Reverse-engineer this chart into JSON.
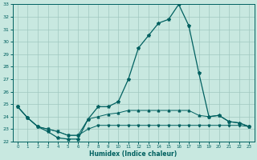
{
  "xlabel": "Humidex (Indice chaleur)",
  "bg_color": "#c8e8e0",
  "line_color": "#006060",
  "grid_color": "#a0c8c0",
  "x_values": [
    0,
    1,
    2,
    3,
    4,
    5,
    6,
    7,
    8,
    9,
    10,
    11,
    12,
    13,
    14,
    15,
    16,
    17,
    18,
    19,
    20,
    21,
    22,
    23
  ],
  "y_main": [
    24.8,
    23.9,
    23.2,
    22.8,
    22.3,
    22.2,
    22.2,
    23.8,
    24.8,
    24.8,
    25.2,
    27.0,
    29.5,
    30.5,
    31.5,
    31.8,
    33.0,
    31.3,
    27.5,
    24.0,
    24.1,
    23.6,
    23.5,
    23.2
  ],
  "y_min": [
    24.8,
    23.9,
    23.2,
    23.0,
    22.8,
    22.5,
    22.5,
    23.0,
    23.3,
    23.3,
    23.3,
    23.3,
    23.3,
    23.3,
    23.3,
    23.3,
    23.3,
    23.3,
    23.3,
    23.3,
    23.3,
    23.3,
    23.3,
    23.2
  ],
  "y_max": [
    24.8,
    23.9,
    23.2,
    23.0,
    22.8,
    22.5,
    22.5,
    23.8,
    24.0,
    24.2,
    24.3,
    24.5,
    24.5,
    24.5,
    24.5,
    24.5,
    24.5,
    24.5,
    24.1,
    24.0,
    24.1,
    23.6,
    23.5,
    23.2
  ],
  "ylim": [
    22,
    33
  ],
  "xlim": [
    -0.5,
    23.5
  ],
  "yticks": [
    22,
    23,
    24,
    25,
    26,
    27,
    28,
    29,
    30,
    31,
    32,
    33
  ],
  "xticks": [
    0,
    1,
    2,
    3,
    4,
    5,
    6,
    7,
    8,
    9,
    10,
    11,
    12,
    13,
    14,
    15,
    16,
    17,
    18,
    19,
    20,
    21,
    22,
    23
  ]
}
